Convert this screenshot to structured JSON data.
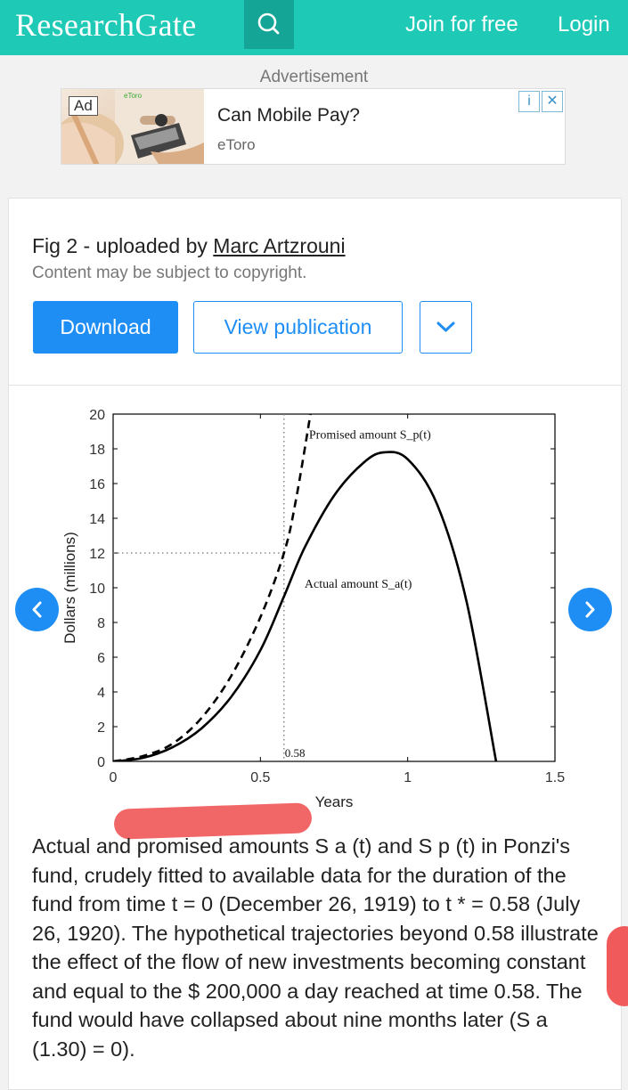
{
  "header": {
    "logo": "ResearchGate",
    "join_label": "Join for free",
    "login_label": "Login"
  },
  "ad": {
    "label": "Advertisement",
    "badge": "Ad",
    "brand_mark": "eToro",
    "title": "Can Mobile Pay?",
    "sponsor": "eToro"
  },
  "figure": {
    "title_prefix": "Fig 2 - uploaded by ",
    "author": "Marc Artzrouni",
    "copyright": "Content may be subject to copyright.",
    "download_label": "Download",
    "view_label": "View publication",
    "caption": "Actual and promised amounts S a (t) and S p (t) in Ponzi's fund, crudely fitted to available data for the duration of the fund from time t = 0 (December 26, 1919) to t * = 0.58 (July 26, 1920). The hypothetical trajectories beyond 0.58 illustrate the effect of the flow of new investments becoming constant and equal to the $ 200,000 a day reached at time 0.58. The fund would have collapsed about nine months later (S a (1.30) = 0)."
  },
  "colors": {
    "brand": "#1ec9b6",
    "accent": "#1f8ef4"
  },
  "chart_data": {
    "type": "line",
    "xlabel": "Years",
    "ylabel": "Dollars (millions)",
    "xlim": [
      0,
      1.5
    ],
    "ylim": [
      0,
      20
    ],
    "xticks": [
      "0",
      "0.5",
      "1",
      "1.5"
    ],
    "yticks": [
      "0",
      "2",
      "4",
      "6",
      "8",
      "10",
      "12",
      "14",
      "16",
      "18",
      "20"
    ],
    "series": [
      {
        "name": "Actual amount S_a(t)",
        "style": "solid",
        "x": [
          0,
          0.1,
          0.2,
          0.3,
          0.4,
          0.5,
          0.58,
          0.65,
          0.75,
          0.85,
          0.92,
          1.0,
          1.1,
          1.2,
          1.3
        ],
        "y": [
          0,
          0.2,
          0.8,
          1.9,
          3.7,
          6.4,
          9.5,
          12.3,
          15.3,
          17.2,
          17.8,
          17.4,
          14.8,
          9.2,
          0
        ]
      },
      {
        "name": "Promised amount S_p(t)",
        "style": "dashed",
        "x": [
          0,
          0.1,
          0.2,
          0.3,
          0.4,
          0.5,
          0.58,
          0.62,
          0.67
        ],
        "y": [
          0,
          0.3,
          1.0,
          2.5,
          4.9,
          8.3,
          12.0,
          15.0,
          20
        ]
      }
    ],
    "annotations": [
      {
        "text": "Promised amount S_p(t)",
        "series": 1
      },
      {
        "text": "Actual amount S_a(t)",
        "series": 0
      },
      {
        "text": "0.58",
        "x": 0.58,
        "y": 0
      }
    ],
    "reference_lines": {
      "x": 0.58,
      "y": 12
    }
  }
}
